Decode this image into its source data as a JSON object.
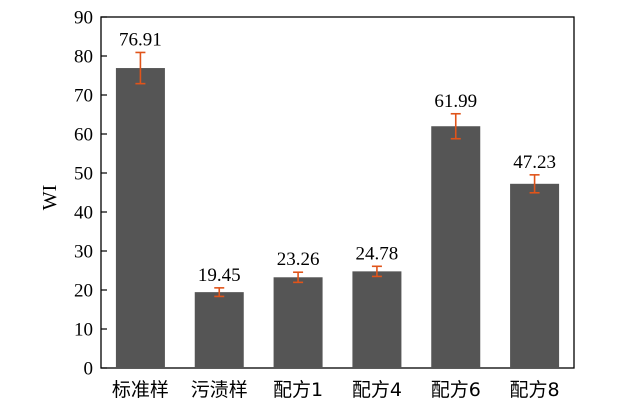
{
  "chart_data": {
    "type": "bar",
    "categories": [
      "标准样",
      "污渍样",
      "配方1",
      "配方4",
      "配方6",
      "配方8"
    ],
    "values": [
      76.91,
      19.45,
      23.26,
      24.78,
      61.99,
      47.23
    ],
    "error": [
      4.0,
      1.1,
      1.3,
      1.3,
      3.2,
      2.3
    ],
    "data_labels": [
      "76.91",
      "19.45",
      "23.26",
      "24.78",
      "61.99",
      "47.23"
    ],
    "ylabel": "WI",
    "xlabel": "",
    "ylim": [
      0,
      90
    ],
    "yticks": [
      0,
      10,
      20,
      30,
      40,
      50,
      60,
      70,
      80,
      90
    ],
    "grid": false,
    "bar_color": "#555555",
    "error_color": "#e0541a"
  }
}
